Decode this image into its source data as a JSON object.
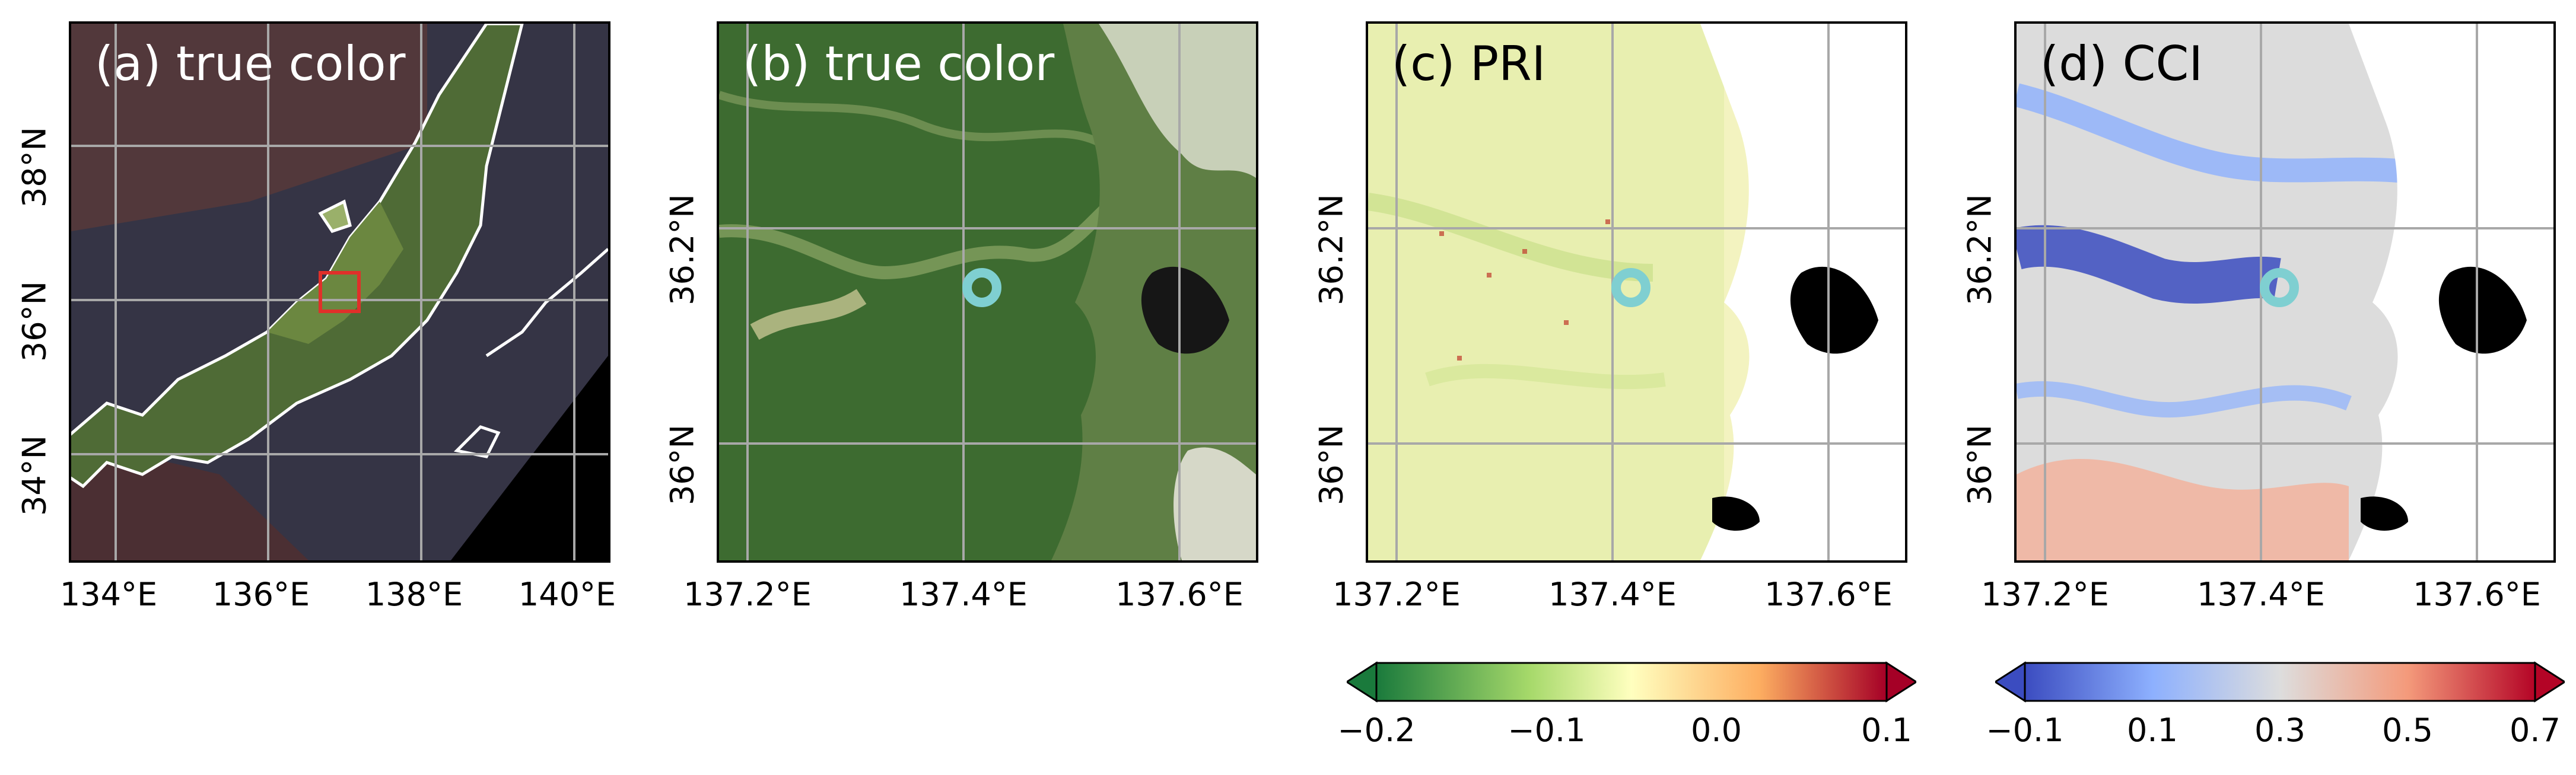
{
  "panels": [
    {
      "label": "(a) true color",
      "xticks": [
        "134°E",
        "136°E",
        "138°E",
        "140°E"
      ],
      "yticks": [
        "38°N",
        "36°N",
        "34°N"
      ]
    },
    {
      "label": "(b) true color",
      "xticks": [
        "137.2°E",
        "137.4°E",
        "137.6°E"
      ],
      "yticks": [
        "36.2°N",
        "36°N"
      ]
    },
    {
      "label": "(c) PRI",
      "xticks": [
        "137.2°E",
        "137.4°E",
        "137.6°E"
      ],
      "yticks": [
        "36.2°N",
        "36°N"
      ]
    },
    {
      "label": "(d) CCI",
      "xticks": [
        "137.2°E",
        "137.4°E",
        "137.6°E"
      ],
      "yticks": [
        "36.2°N",
        "36°N"
      ]
    }
  ],
  "colorbars": [
    {
      "name": "PRI",
      "ticks": [
        "−0.2",
        "−0.1",
        "0.0",
        "0.1"
      ],
      "colors": [
        "#1a7a3c",
        "#a6d96a",
        "#ffffbf",
        "#fdae61",
        "#a50026"
      ]
    },
    {
      "name": "CCI",
      "ticks": [
        "−0.1",
        "0.1",
        "0.3",
        "0.5",
        "0.7"
      ],
      "colors": [
        "#3b4cc0",
        "#8db0fe",
        "#dddddd",
        "#f49a7b",
        "#b40426"
      ]
    }
  ],
  "marker_color": "#7fcfd1",
  "box_color": "#e0302a"
}
